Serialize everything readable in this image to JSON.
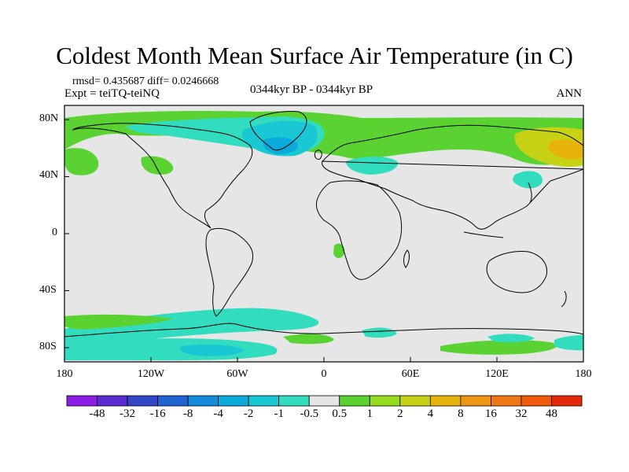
{
  "header": {
    "title": "Coldest Month Mean Surface Air Temperature (in C)",
    "stats": "rmsd= 0.435687 diff= 0.0246668",
    "experiment": "Expt = teiTQ-teiNQ",
    "period": "0344kyr BP - 0344kyr BP",
    "season": "ANN"
  },
  "axes": {
    "lat_ticks": [
      "80N",
      "40N",
      "0",
      "40S",
      "80S"
    ],
    "lon_ticks": [
      "180",
      "120W",
      "60W",
      "0",
      "60E",
      "120E",
      "180"
    ]
  },
  "colorbar": {
    "labels": [
      "-48",
      "-32",
      "-16",
      "-8",
      "-4",
      "-2",
      "-1",
      "-0.5",
      "0.5",
      "1",
      "2",
      "4",
      "8",
      "16",
      "32",
      "48"
    ],
    "colors": [
      "#8c1ee6",
      "#5a2cd2",
      "#3246c8",
      "#1e64d2",
      "#148cdc",
      "#0aaadc",
      "#19c8d2",
      "#32dcbe",
      "#e6e6e6",
      "#5ad232",
      "#96dc1e",
      "#c8d214",
      "#e6b40a",
      "#ee9614",
      "#f07814",
      "#f05a0a",
      "#e6280a"
    ]
  },
  "map": {
    "projection": "equirectangular",
    "lat_range": [
      -90,
      90
    ],
    "lon_range": [
      -180,
      180
    ],
    "background_color": "#e6e6e6",
    "regions": [
      {
        "name": "N. Canada / Greenland cooling",
        "category": "-0.5 to -1"
      },
      {
        "name": "N. Atlantic / Greenland sea cooling",
        "category": "-2 to -4"
      },
      {
        "name": "Alaska / Siberia warming",
        "category": "1 to 4"
      },
      {
        "name": "Southern Ocean cooling band",
        "category": "-0.5 to -2"
      },
      {
        "name": "Antarctic coast warming",
        "category": "0.5 to 1"
      }
    ]
  }
}
